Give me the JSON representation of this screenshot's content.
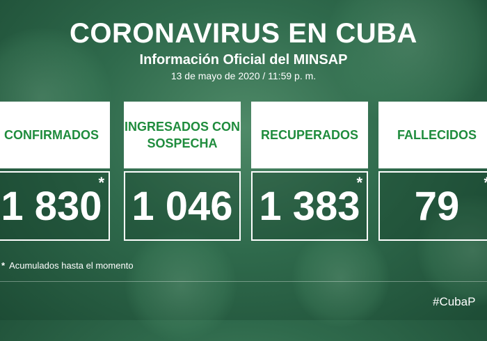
{
  "header": {
    "title": "CORONAVIRUS EN CUBA",
    "subtitle": "Información Oficial del MINSAP",
    "date": "13 de mayo de 2020 / 11:59 p. m."
  },
  "cards": [
    {
      "label": "CONFIRMADOS",
      "value": "1 830",
      "asterisk": "*"
    },
    {
      "label": "INGRESADOS CON SOSPECHA",
      "value": "1 046",
      "asterisk": ""
    },
    {
      "label": "RECUPERADOS",
      "value": "1 383",
      "asterisk": "*"
    },
    {
      "label": "FALLECIDOS",
      "value": "79",
      "asterisk": "*"
    }
  ],
  "note": {
    "star": "*",
    "text": "Acumulados hasta el momento"
  },
  "hashtag": "#CubaP",
  "colors": {
    "label_green": "#1f8c3d",
    "background": "#2f6a4c"
  }
}
